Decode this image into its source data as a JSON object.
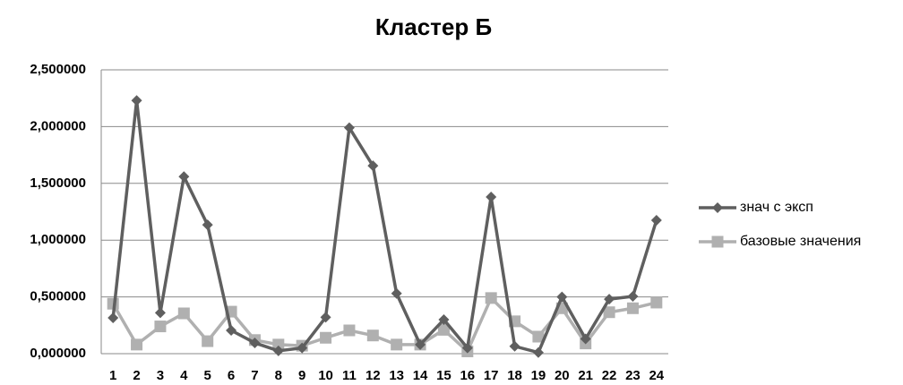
{
  "chart_data": {
    "type": "line",
    "title": "Кластер Б",
    "categories": [
      "1",
      "2",
      "3",
      "4",
      "5",
      "6",
      "7",
      "8",
      "9",
      "10",
      "11",
      "12",
      "13",
      "14",
      "15",
      "16",
      "17",
      "18",
      "19",
      "20",
      "21",
      "22",
      "23",
      "24"
    ],
    "series": [
      {
        "name": "знач с эксп",
        "color": "#5f5f5f",
        "marker": "diamond",
        "values": [
          0.315,
          2.23,
          0.36,
          1.56,
          1.135,
          0.205,
          0.095,
          0.025,
          0.05,
          0.32,
          1.99,
          1.655,
          0.53,
          0.08,
          0.3,
          0.05,
          1.38,
          0.065,
          0.01,
          0.5,
          0.13,
          0.48,
          0.505,
          1.175
        ]
      },
      {
        "name": "базовые значения",
        "color": "#b0b0b0",
        "marker": "square",
        "values": [
          0.44,
          0.08,
          0.24,
          0.355,
          0.11,
          0.37,
          0.12,
          0.08,
          0.07,
          0.14,
          0.205,
          0.16,
          0.08,
          0.08,
          0.21,
          0.02,
          0.49,
          0.285,
          0.15,
          0.4,
          0.09,
          0.365,
          0.4,
          0.45
        ]
      }
    ],
    "ylim": [
      0,
      2.5
    ],
    "yticks": [
      {
        "value": 0,
        "label": "0,000000"
      },
      {
        "value": 0.5,
        "label": "0,500000"
      },
      {
        "value": 1,
        "label": "1,000000"
      },
      {
        "value": 1.5,
        "label": "1,500000"
      },
      {
        "value": 2,
        "label": "2,000000"
      },
      {
        "value": 2.5,
        "label": "2,500000"
      }
    ],
    "grid": true,
    "legend": "right"
  }
}
